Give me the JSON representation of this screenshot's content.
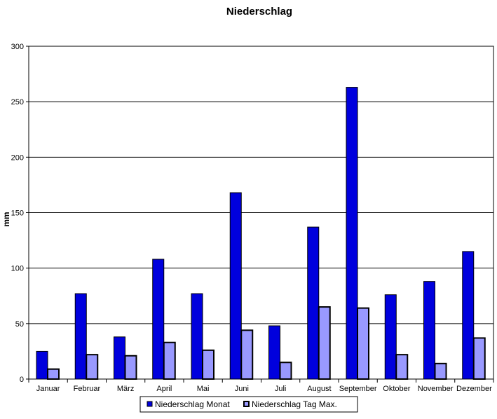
{
  "chart_data": {
    "type": "bar",
    "title": "Niederschlag",
    "xlabel": "",
    "ylabel": "mm",
    "ylim": [
      0,
      300
    ],
    "yticks": [
      0,
      50,
      100,
      150,
      200,
      250,
      300
    ],
    "grid": true,
    "legend_position": "bottom",
    "categories": [
      "Januar",
      "Februar",
      "März",
      "April",
      "Mai",
      "Juni",
      "Juli",
      "August",
      "September",
      "Oktober",
      "November",
      "Dezember"
    ],
    "series": [
      {
        "name": "Niederschlag Monat",
        "color": "#0000dd",
        "values": [
          25,
          77,
          38,
          108,
          77,
          168,
          48,
          137,
          263,
          76,
          88,
          115
        ]
      },
      {
        "name": "Niederschlag Tag Max.",
        "color": "#9999ff",
        "values": [
          9,
          22,
          21,
          33,
          26,
          44,
          15,
          65,
          64,
          22,
          14,
          37
        ]
      }
    ]
  }
}
